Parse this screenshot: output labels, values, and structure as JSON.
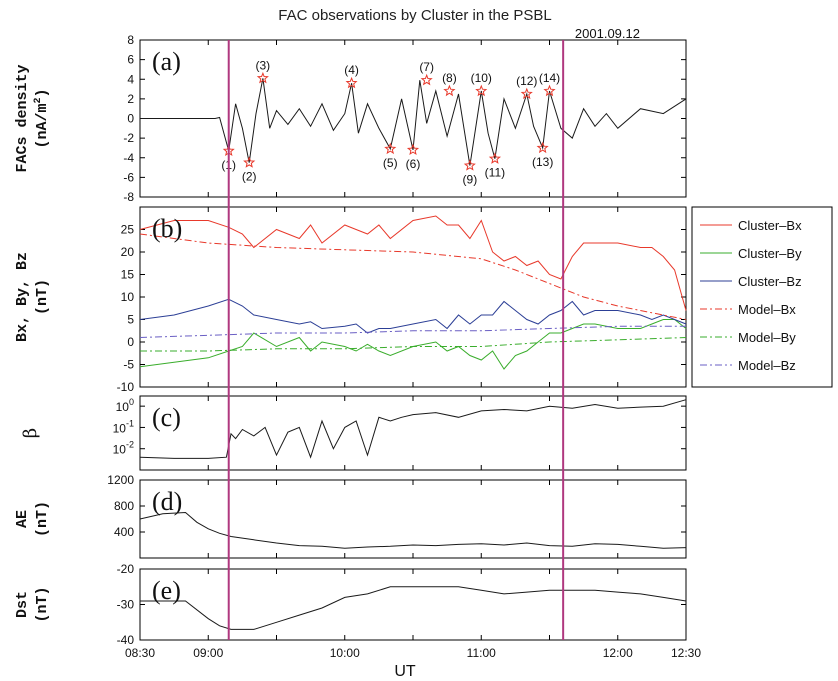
{
  "figure": {
    "title": "FAC observations by Cluster in the PSBL",
    "date": "2001.09.12",
    "xlabel": "UT"
  },
  "colors": {
    "cluster_bx": "#e8392b",
    "cluster_by": "#3aad2c",
    "cluster_bz": "#2c3f96",
    "boundary": "#b0387f",
    "star": "#e8392b",
    "trace": "#1a1a1a"
  },
  "chart_data": [
    {
      "type": "line",
      "panel": "(a)",
      "ylabel_line1": "FACs density",
      "ylabel_line2": "(nA/m",
      "ylabel_sup": "2",
      "ylabel_end": ")",
      "ylim": [
        -8,
        8
      ],
      "yticks": [
        -8,
        -6,
        -4,
        -2,
        0,
        2,
        4,
        6,
        8
      ],
      "ytick_labels": [
        "-8",
        "-6",
        "-4",
        "-2",
        "0",
        "2",
        "4",
        "6",
        "8"
      ],
      "series": [
        {
          "color": "#1a1a1a",
          "x": [
            "08:30",
            "08:45",
            "09:00",
            "09:03",
            "09:05",
            "09:09",
            "09:12",
            "09:15",
            "09:18",
            "09:21",
            "09:24",
            "09:27",
            "09:30",
            "09:35",
            "09:40",
            "09:45",
            "09:50",
            "09:55",
            "10:00",
            "10:03",
            "10:06",
            "10:10",
            "10:15",
            "10:20",
            "10:25",
            "10:30",
            "10:33",
            "10:36",
            "10:40",
            "10:45",
            "10:50",
            "10:55",
            "11:00",
            "11:03",
            "11:06",
            "11:10",
            "11:15",
            "11:20",
            "11:23",
            "11:27",
            "11:30",
            "11:35",
            "11:40",
            "11:45",
            "11:50",
            "11:55",
            "12:00",
            "12:10",
            "12:20",
            "12:30"
          ],
          "values": [
            0,
            0,
            0,
            0,
            0.1,
            -3.3,
            1.5,
            -1,
            -4.5,
            0.5,
            4.1,
            -1,
            0.8,
            -0.6,
            1,
            -0.8,
            1.5,
            -1.2,
            0.5,
            3.6,
            -1.5,
            1.5,
            -1,
            -3.1,
            2,
            -3.2,
            3.9,
            -0.5,
            2.8,
            -1.8,
            2.5,
            -4.8,
            2.8,
            -1.5,
            -4.1,
            2,
            -1,
            2.5,
            -0.8,
            -3,
            2.8,
            -1,
            -2,
            1,
            -0.8,
            0.5,
            -1,
            1,
            0.5,
            2
          ]
        }
      ],
      "events": [
        {
          "label": "(1)",
          "x": "09:09",
          "y": -3.3
        },
        {
          "label": "(2)",
          "x": "09:18",
          "y": -4.5
        },
        {
          "label": "(3)",
          "x": "09:24",
          "y": 4.1
        },
        {
          "label": "(4)",
          "x": "10:03",
          "y": 3.6
        },
        {
          "label": "(5)",
          "x": "10:20",
          "y": -3.1
        },
        {
          "label": "(6)",
          "x": "10:30",
          "y": -3.2
        },
        {
          "label": "(7)",
          "x": "10:36",
          "y": 3.9
        },
        {
          "label": "(8)",
          "x": "10:46",
          "y": 2.8
        },
        {
          "label": "(9)",
          "x": "10:55",
          "y": -4.8
        },
        {
          "label": "(10)",
          "x": "11:00",
          "y": 2.8
        },
        {
          "label": "(11)",
          "x": "11:06",
          "y": -4.1
        },
        {
          "label": "(12)",
          "x": "11:20",
          "y": 2.5
        },
        {
          "label": "(13)",
          "x": "11:27",
          "y": -3.0
        },
        {
          "label": "(14)",
          "x": "11:30",
          "y": 2.8
        }
      ]
    },
    {
      "type": "line",
      "panel": "(b)",
      "ylabel_line1": "Bx, By, Bz",
      "ylabel_line2": "(nT)",
      "ylim": [
        -10,
        30
      ],
      "yticks": [
        -10,
        -5,
        0,
        5,
        10,
        15,
        20,
        25
      ],
      "ytick_labels": [
        "-10",
        "-5",
        "0",
        "5",
        "10",
        "15",
        "20",
        "25"
      ],
      "legend": "right-outside",
      "series": [
        {
          "name": "Cluster–Bx",
          "color": "#e8392b",
          "dash": "solid",
          "x": [
            "08:30",
            "08:45",
            "09:00",
            "09:09",
            "09:15",
            "09:20",
            "09:30",
            "09:40",
            "09:45",
            "09:50",
            "10:00",
            "10:05",
            "10:10",
            "10:15",
            "10:20",
            "10:30",
            "10:40",
            "10:45",
            "10:50",
            "10:55",
            "11:00",
            "11:05",
            "11:10",
            "11:15",
            "11:20",
            "11:25",
            "11:30",
            "11:35",
            "11:40",
            "11:45",
            "11:50",
            "12:00",
            "12:10",
            "12:15",
            "12:20",
            "12:25",
            "12:30"
          ],
          "values": [
            25,
            27,
            27,
            25.5,
            24,
            21,
            25,
            23,
            26,
            22,
            26,
            25,
            24,
            26,
            23,
            27,
            28,
            26,
            26,
            23,
            27,
            20,
            18,
            19,
            17,
            18,
            15,
            14,
            19,
            22,
            22,
            22,
            21,
            21,
            19,
            16,
            7
          ]
        },
        {
          "name": "Cluster–By",
          "color": "#3aad2c",
          "dash": "solid",
          "x": [
            "08:30",
            "08:45",
            "09:00",
            "09:09",
            "09:15",
            "09:20",
            "09:30",
            "09:40",
            "09:45",
            "09:50",
            "10:00",
            "10:05",
            "10:10",
            "10:15",
            "10:20",
            "10:30",
            "10:40",
            "10:45",
            "10:50",
            "10:55",
            "11:00",
            "11:05",
            "11:10",
            "11:15",
            "11:20",
            "11:25",
            "11:30",
            "11:35",
            "11:40",
            "11:45",
            "11:50",
            "12:00",
            "12:10",
            "12:15",
            "12:20",
            "12:25",
            "12:30"
          ],
          "values": [
            -5.5,
            -4.5,
            -3.5,
            -2,
            -1,
            2,
            -1,
            1,
            -2,
            0,
            -1,
            -2,
            -0.5,
            -2,
            -3,
            -1,
            0,
            -2,
            -1,
            -3,
            -4,
            -2,
            -6,
            -3,
            -2,
            0,
            2,
            2,
            3,
            4,
            4,
            3,
            3,
            4,
            5,
            5,
            3
          ]
        },
        {
          "name": "Cluster–Bz",
          "color": "#2c3f96",
          "dash": "solid",
          "x": [
            "08:30",
            "08:45",
            "09:00",
            "09:09",
            "09:15",
            "09:20",
            "09:30",
            "09:40",
            "09:45",
            "09:50",
            "10:00",
            "10:05",
            "10:10",
            "10:15",
            "10:20",
            "10:30",
            "10:40",
            "10:45",
            "10:50",
            "10:55",
            "11:00",
            "11:05",
            "11:10",
            "11:15",
            "11:20",
            "11:25",
            "11:30",
            "11:35",
            "11:40",
            "11:45",
            "11:50",
            "12:00",
            "12:10",
            "12:15",
            "12:20",
            "12:25",
            "12:30"
          ],
          "values": [
            5,
            6,
            8,
            9.5,
            8,
            6,
            5,
            4,
            4.5,
            3,
            3.5,
            4,
            2,
            3,
            3,
            4,
            5,
            3,
            6,
            4,
            6,
            6,
            9,
            7,
            5,
            4,
            6,
            7,
            9,
            6,
            7,
            7,
            6,
            5,
            6,
            5,
            4
          ]
        },
        {
          "name": "Model–Bx",
          "color": "#e8392b",
          "dash": "dashdot",
          "x": [
            "08:30",
            "09:00",
            "09:30",
            "10:00",
            "10:30",
            "11:00",
            "11:15",
            "11:30",
            "11:45",
            "12:00",
            "12:15",
            "12:30"
          ],
          "values": [
            24,
            22,
            21,
            20.5,
            20,
            18.5,
            16,
            13,
            10,
            8,
            6.5,
            5
          ]
        },
        {
          "name": "Model–By",
          "color": "#3aad2c",
          "dash": "dashdot",
          "x": [
            "08:30",
            "09:00",
            "09:30",
            "10:00",
            "10:30",
            "11:00",
            "11:30",
            "12:00",
            "12:30"
          ],
          "values": [
            -2,
            -2,
            -1.5,
            -1.5,
            -1,
            -1,
            0,
            0.5,
            1
          ]
        },
        {
          "name": "Model–Bz",
          "color": "#6a5fc4",
          "dash": "dashdot",
          "x": [
            "08:30",
            "09:00",
            "09:30",
            "10:00",
            "10:30",
            "11:00",
            "11:30",
            "12:00",
            "12:30"
          ],
          "values": [
            1,
            1.5,
            2,
            2,
            2.5,
            2.5,
            3,
            3.5,
            3.5
          ]
        }
      ]
    },
    {
      "type": "line",
      "panel": "(c)",
      "ylabel_line1": "β",
      "yscale": "log",
      "ylim": [
        0.001,
        3
      ],
      "yticks": [
        0.01,
        0.1,
        1
      ],
      "ytick_base": "10",
      "ytick_exponents": [
        "-2",
        "-1",
        "0"
      ],
      "series": [
        {
          "color": "#1a1a1a",
          "x": [
            "08:30",
            "08:45",
            "09:00",
            "09:08",
            "09:10",
            "09:12",
            "09:15",
            "09:20",
            "09:25",
            "09:30",
            "09:35",
            "09:40",
            "09:45",
            "09:50",
            "09:55",
            "10:00",
            "10:05",
            "10:10",
            "10:15",
            "10:20",
            "10:25",
            "10:30",
            "10:40",
            "10:50",
            "11:00",
            "11:10",
            "11:20",
            "11:30",
            "11:40",
            "11:50",
            "12:00",
            "12:10",
            "12:20",
            "12:30"
          ],
          "values": [
            0.004,
            0.0035,
            0.0035,
            0.004,
            0.05,
            0.03,
            0.08,
            0.04,
            0.1,
            0.005,
            0.06,
            0.1,
            0.004,
            0.2,
            0.01,
            0.1,
            0.2,
            0.005,
            0.3,
            0.2,
            0.3,
            0.4,
            0.5,
            0.3,
            0.6,
            0.7,
            0.6,
            1,
            0.8,
            1.2,
            0.8,
            0.9,
            1,
            2
          ]
        }
      ]
    },
    {
      "type": "line",
      "panel": "(d)",
      "ylabel_line1": "AE",
      "ylabel_line2": "(nT)",
      "ylim": [
        0,
        1200
      ],
      "yticks": [
        400,
        800,
        1200
      ],
      "ytick_labels": [
        "400",
        "800",
        "1200"
      ],
      "series": [
        {
          "color": "#1a1a1a",
          "x": [
            "08:30",
            "08:40",
            "08:50",
            "08:55",
            "09:00",
            "09:05",
            "09:10",
            "09:20",
            "09:30",
            "09:40",
            "09:50",
            "10:00",
            "10:10",
            "10:20",
            "10:30",
            "10:40",
            "10:50",
            "11:00",
            "11:10",
            "11:20",
            "11:30",
            "11:40",
            "11:50",
            "12:00",
            "12:10",
            "12:20",
            "12:30"
          ],
          "values": [
            600,
            680,
            700,
            550,
            450,
            380,
            330,
            280,
            230,
            190,
            180,
            150,
            170,
            180,
            200,
            190,
            210,
            220,
            200,
            230,
            190,
            180,
            220,
            210,
            180,
            150,
            160
          ]
        }
      ]
    },
    {
      "type": "line",
      "panel": "(e)",
      "ylabel_line1": "Dst",
      "ylabel_line2": "(nT)",
      "ylim": [
        -40,
        -20
      ],
      "yticks": [
        -40,
        -30,
        -20
      ],
      "ytick_labels": [
        "-40",
        "-30",
        "-20"
      ],
      "xticks": [
        "08:30",
        "09:00",
        "10:00",
        "11:00",
        "12:00",
        "12:30"
      ],
      "series": [
        {
          "color": "#1a1a1a",
          "x": [
            "08:30",
            "08:50",
            "09:00",
            "09:05",
            "09:10",
            "09:20",
            "09:30",
            "09:40",
            "09:50",
            "10:00",
            "10:10",
            "10:20",
            "10:30",
            "10:40",
            "10:50",
            "11:00",
            "11:10",
            "11:20",
            "11:30",
            "11:40",
            "11:50",
            "12:00",
            "12:10",
            "12:20",
            "12:30"
          ],
          "values": [
            -29,
            -29,
            -34,
            -36,
            -37,
            -37,
            -35,
            -33,
            -31,
            -28,
            -27,
            -25,
            -25,
            -25,
            -25,
            -26,
            -27,
            -26.5,
            -26,
            -26,
            -26,
            -26.5,
            -27,
            -28,
            -29
          ]
        }
      ]
    }
  ],
  "boundaries": [
    "09:09",
    "11:36"
  ]
}
